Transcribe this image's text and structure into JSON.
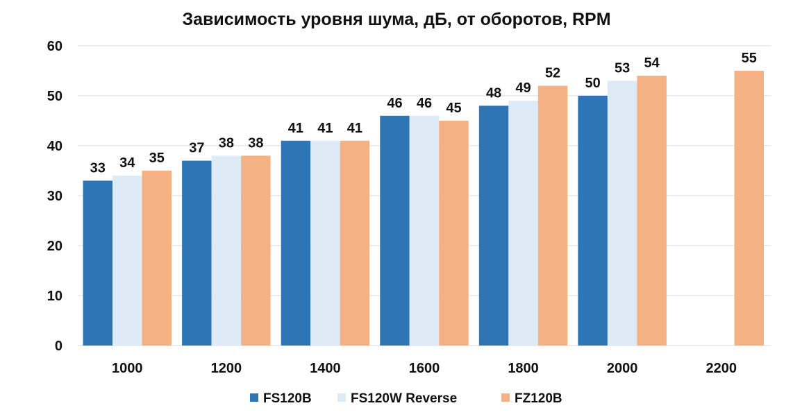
{
  "chart_data": {
    "type": "bar",
    "title": "Зависимость уровня шума, дБ, от оборотов, RPM",
    "xlabel": "",
    "ylabel": "",
    "categories": [
      "1000",
      "1200",
      "1400",
      "1600",
      "1800",
      "2000",
      "2200"
    ],
    "ylim": [
      0,
      60
    ],
    "yticks": [
      0,
      10,
      20,
      30,
      40,
      50,
      60
    ],
    "grid": true,
    "legend_position": "bottom",
    "series": [
      {
        "name": "FS120B",
        "color": "#2e75b6",
        "values": [
          33,
          37,
          41,
          46,
          48,
          50,
          null
        ]
      },
      {
        "name": "FS120W Reverse",
        "color": "#deebf7",
        "values": [
          34,
          38,
          41,
          46,
          49,
          53,
          null
        ]
      },
      {
        "name": "FZ120B",
        "color": "#f4b183",
        "values": [
          35,
          38,
          41,
          45,
          52,
          54,
          55
        ]
      }
    ]
  }
}
